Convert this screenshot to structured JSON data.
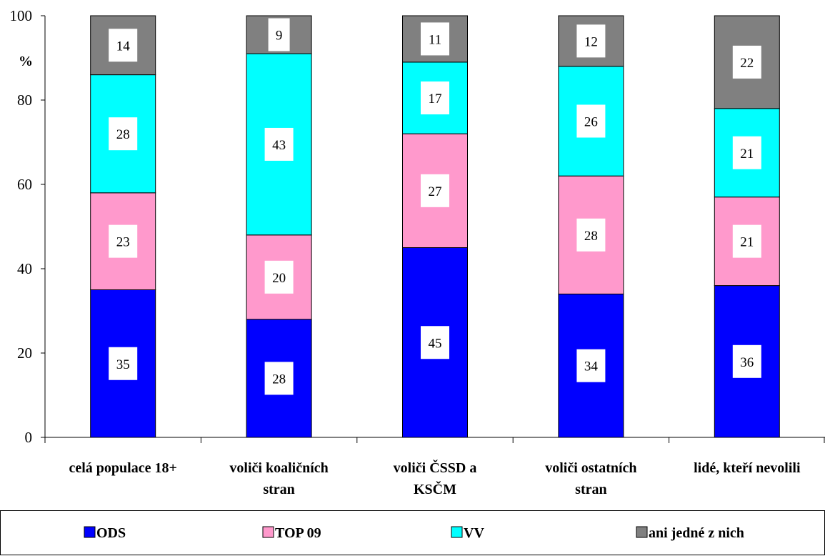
{
  "chart_data": {
    "type": "bar",
    "stacked": true,
    "ylabel": "%",
    "ylim": [
      0,
      100
    ],
    "yticks": [
      0,
      20,
      40,
      60,
      80,
      100
    ],
    "categories": [
      [
        "celá populace 18+"
      ],
      [
        "voliči koaličních",
        "stran"
      ],
      [
        "voliči ČSSD a",
        "KSČM"
      ],
      [
        "voliči ostatních",
        "stran"
      ],
      [
        "lidé, kteří nevolili"
      ]
    ],
    "series": [
      {
        "name": "ODS",
        "color": "#0000ff",
        "values": [
          35,
          28,
          45,
          34,
          36
        ]
      },
      {
        "name": "TOP 09",
        "color": "#ff99cc",
        "values": [
          23,
          20,
          27,
          28,
          21
        ]
      },
      {
        "name": "VV",
        "color": "#00ffff",
        "values": [
          28,
          43,
          17,
          26,
          21
        ]
      },
      {
        "name": "ani jedné z nich",
        "color": "#808080",
        "values": [
          14,
          9,
          11,
          12,
          22
        ]
      }
    ],
    "legend_position": "bottom",
    "grid": false
  }
}
